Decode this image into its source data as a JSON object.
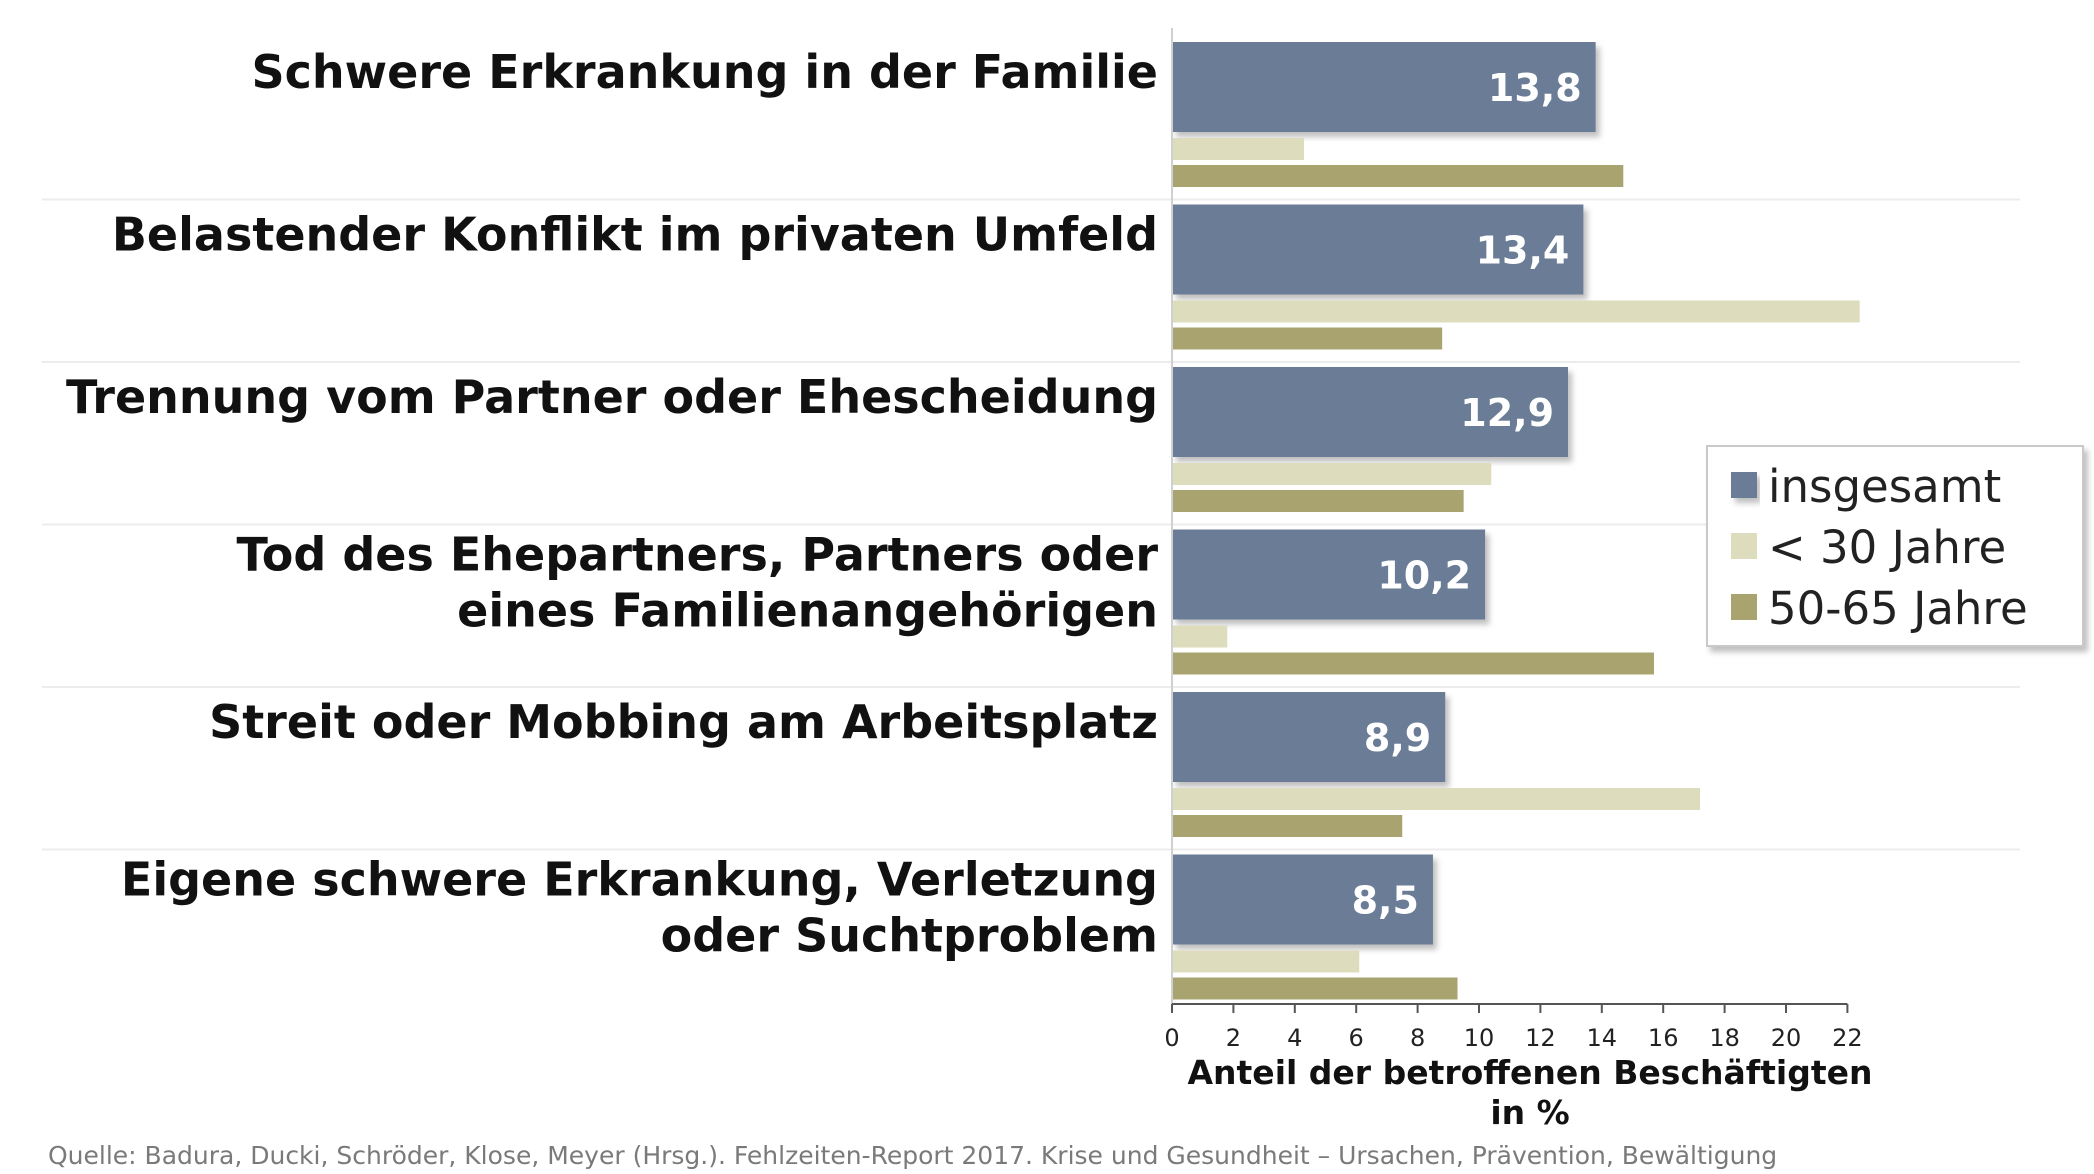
{
  "chart_data": {
    "type": "bar",
    "orientation": "horizontal",
    "categories": [
      [
        "Schwere Erkrankung in der Familie"
      ],
      [
        "Belastender Konflikt im privaten Umfeld"
      ],
      [
        "Trennung vom Partner oder Ehescheidung"
      ],
      [
        "Tod des Ehepartners, Partners oder",
        "eines Familienangehörigen"
      ],
      [
        "Streit oder Mobbing am Arbeitsplatz"
      ],
      [
        "Eigene schwere Erkrankung, Verletzung",
        "oder Suchtproblem"
      ]
    ],
    "series": [
      {
        "name": "insgesamt",
        "values": [
          13.8,
          13.4,
          12.9,
          10.2,
          8.9,
          8.5
        ],
        "value_labels": [
          "13,8",
          "13,4",
          "12,9",
          "10,2",
          "8,9",
          "8,5"
        ],
        "color": "#6b7b96"
      },
      {
        "name": "< 30 Jahre",
        "values": [
          4.3,
          22.4,
          10.4,
          1.8,
          17.2,
          6.1
        ],
        "color": "#ddddbd"
      },
      {
        "name": "50-65 Jahre",
        "values": [
          14.7,
          8.8,
          9.5,
          15.7,
          7.5,
          9.3
        ],
        "color": "#a9a46f"
      }
    ],
    "xlim": [
      0,
      22.5
    ],
    "xticks": [
      "0",
      "2",
      "4",
      "6",
      "8",
      "10",
      "12",
      "14",
      "16",
      "18",
      "20",
      "22"
    ],
    "xlabel": [
      "Anteil der betroffenen Beschäftigten",
      "in %"
    ],
    "legend_position": "right",
    "grid": false
  },
  "source": "Quelle: Badura, Ducki, Schröder, Klose, Meyer (Hrsg.). Fehlzeiten-Report 2017. Krise und Gesundheit – Ursachen, Prävention, Bewältigung"
}
